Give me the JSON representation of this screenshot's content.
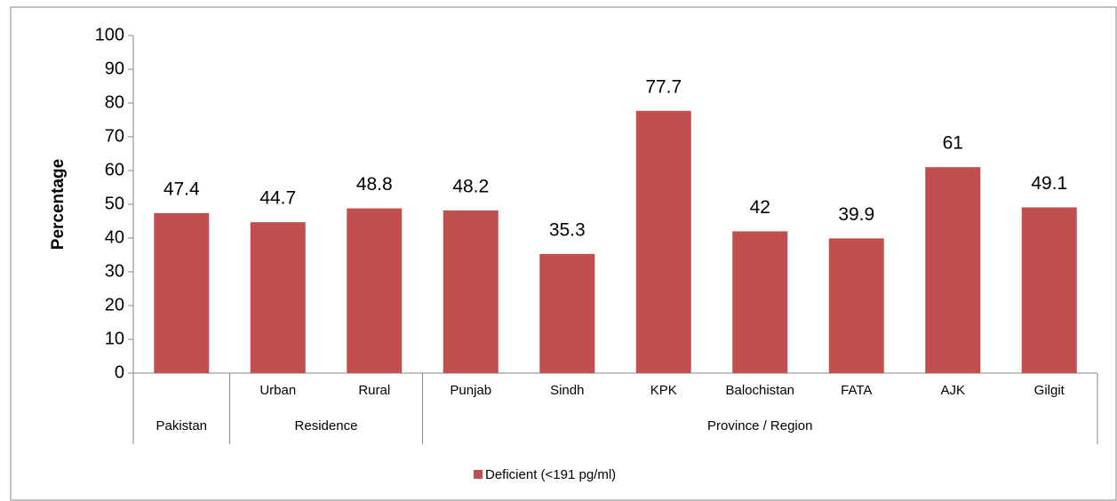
{
  "chart_data": {
    "type": "bar",
    "y_label": "Percentage",
    "categories": [
      null,
      "Urban",
      "Rural",
      "Punjab",
      "Sindh",
      "KPK",
      "Balochistan",
      "FATA",
      "AJK",
      "Gilgit"
    ],
    "groups": [
      {
        "name": "Pakistan",
        "count": 1
      },
      {
        "name": "Residence",
        "count": 2
      },
      {
        "name": "Province / Region",
        "count": 7
      }
    ],
    "series": [
      {
        "name": "Deficient (<191 pg/ml)",
        "color": "#c0504d",
        "values": [
          47.4,
          44.7,
          48.8,
          48.2,
          35.3,
          77.7,
          42,
          39.9,
          61,
          49.1
        ]
      }
    ],
    "ylim": [
      0,
      100
    ],
    "yticks": [
      0,
      10,
      20,
      30,
      40,
      50,
      60,
      70,
      80,
      90,
      100
    ],
    "legend": "bottom"
  }
}
